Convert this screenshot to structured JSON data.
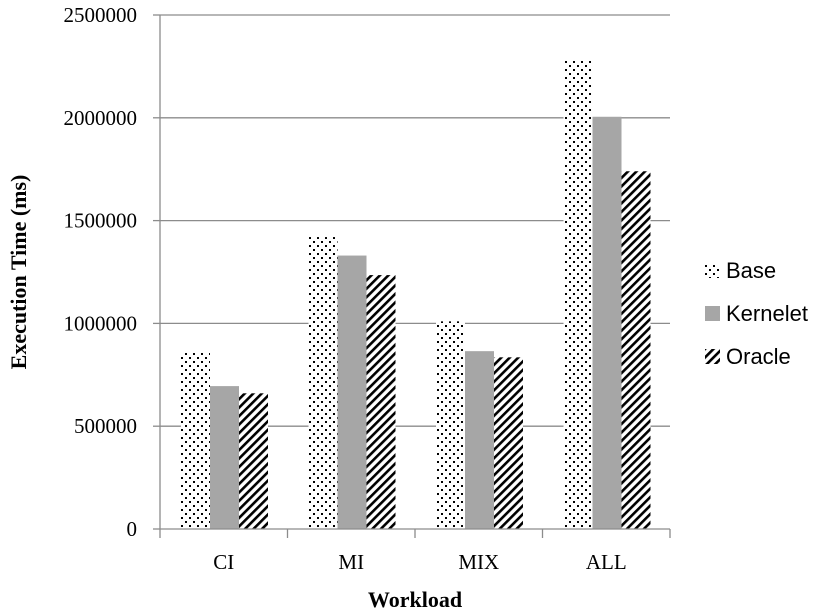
{
  "chart_data": {
    "type": "bar",
    "title": "",
    "xlabel": "Workload",
    "ylabel": "Execution Time (ms)",
    "categories": [
      "CI",
      "MI",
      "MIX",
      "ALL"
    ],
    "ylim": [
      0,
      2500000
    ],
    "yticks": [
      0,
      500000,
      1000000,
      1500000,
      2000000,
      2500000
    ],
    "ytick_labels": [
      "0",
      "500000",
      "1000000",
      "1500000",
      "2000000",
      "2500000"
    ],
    "grid": "horizontal",
    "legend": "right",
    "series": [
      {
        "name": "Base",
        "pattern": "dotted",
        "values": [
          860000,
          1420000,
          1010000,
          2280000
        ]
      },
      {
        "name": "Kernelet",
        "pattern": "solid-gray",
        "color": "#a6a6a6",
        "values": [
          695000,
          1330000,
          865000,
          2005000
        ]
      },
      {
        "name": "Oracle",
        "pattern": "diagonal-hatch",
        "values": [
          660000,
          1235000,
          835000,
          1740000
        ]
      }
    ]
  }
}
